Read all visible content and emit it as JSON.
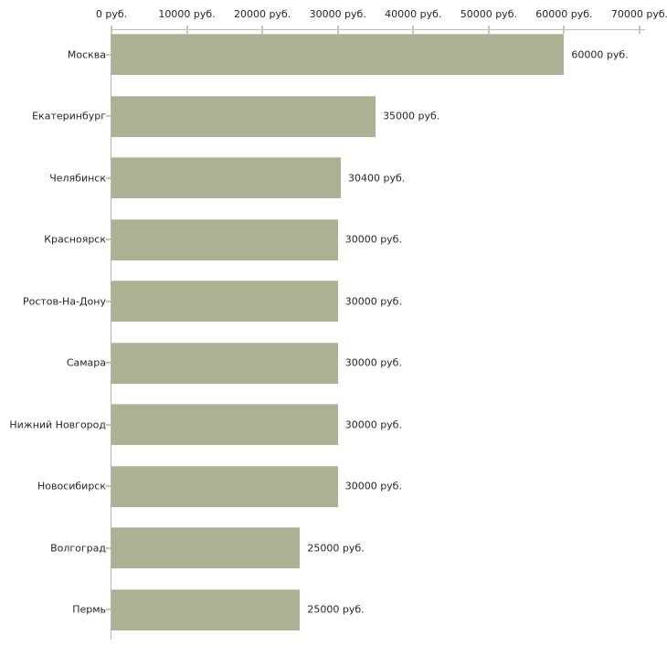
{
  "chart_data": {
    "type": "bar",
    "orientation": "horizontal",
    "title": "",
    "xlabel": "",
    "ylabel": "",
    "unit": "руб.",
    "xlim": [
      0,
      70000
    ],
    "grid": false,
    "legend": false,
    "axis_position": "top",
    "x_ticks": [
      0,
      10000,
      20000,
      30000,
      40000,
      50000,
      60000,
      70000
    ],
    "x_tick_labels": [
      "0 руб.",
      "10000 руб.",
      "20000 руб.",
      "30000 руб.",
      "40000 руб.",
      "50000 руб.",
      "60000 руб.",
      "70000 руб."
    ],
    "categories": [
      "Москва",
      "Екатеринбург",
      "Челябинск",
      "Красноярск",
      "Ростов-На-Дону",
      "Самара",
      "Нижний Новгород",
      "Новосибирск",
      "Волгоград",
      "Пермь"
    ],
    "values": [
      60000,
      35000,
      30400,
      30000,
      30000,
      30000,
      30000,
      30000,
      25000,
      25000
    ],
    "value_labels": [
      "60000 руб.",
      "35000 руб.",
      "30400 руб.",
      "30000 руб.",
      "30000 руб.",
      "30000 руб.",
      "30000 руб.",
      "30000 руб.",
      "25000 руб.",
      "25000 руб."
    ]
  },
  "colors": {
    "bar_fill": "#abb294",
    "bar_top_edge": "#c6c8b8",
    "axis_line": "#bcbcbc",
    "tick": "#c9caa3",
    "text": "#262626",
    "background": "#ffffff"
  }
}
